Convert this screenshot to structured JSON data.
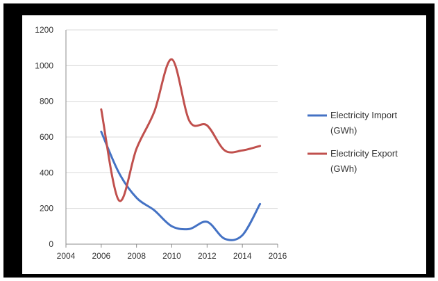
{
  "chart_data": {
    "type": "line",
    "x_ticks": [
      "2004",
      "2006",
      "2008",
      "2010",
      "2012",
      "2014",
      "2016"
    ],
    "y_ticks": [
      "0",
      "200",
      "400",
      "600",
      "800",
      "1000",
      "1200"
    ],
    "xlim": [
      2004,
      2016
    ],
    "ylim": [
      0,
      1200
    ],
    "grid": "horizontal",
    "legend_position": "right",
    "series": [
      {
        "name_lines": [
          "Electricity  Import",
          "(GWh)"
        ],
        "color": "#4472C4",
        "points": [
          [
            2006,
            630
          ],
          [
            2007,
            400
          ],
          [
            2008,
            260
          ],
          [
            2009,
            190
          ],
          [
            2010,
            100
          ],
          [
            2011,
            85
          ],
          [
            2012,
            125
          ],
          [
            2013,
            30
          ],
          [
            2014,
            50
          ],
          [
            2015,
            225
          ]
        ]
      },
      {
        "name_lines": [
          "Electricity  Export",
          "(GWh)"
        ],
        "color": "#C0504D",
        "points": [
          [
            2006,
            755
          ],
          [
            2007,
            245
          ],
          [
            2008,
            535
          ],
          [
            2009,
            740
          ],
          [
            2010,
            1035
          ],
          [
            2011,
            690
          ],
          [
            2012,
            665
          ],
          [
            2013,
            525
          ],
          [
            2014,
            525
          ],
          [
            2015,
            550
          ]
        ]
      }
    ]
  }
}
